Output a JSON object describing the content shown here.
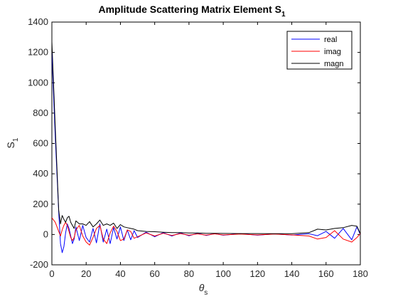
{
  "chart_data": {
    "type": "line",
    "title": "Amplitude Scattering Matrix Element S",
    "title_subscript": "1",
    "xlabel": "θ",
    "xlabel_subscript": "s",
    "ylabel": "S",
    "ylabel_subscript": "1",
    "xlim": [
      0,
      180
    ],
    "ylim": [
      -200,
      1400
    ],
    "xticks": [
      "0",
      "20",
      "40",
      "60",
      "80",
      "100",
      "120",
      "140",
      "160",
      "180"
    ],
    "yticks": [
      "-200",
      "0",
      "200",
      "400",
      "600",
      "800",
      "1000",
      "1200",
      "1400"
    ],
    "grid": false,
    "legend_position": "top-right",
    "x": [
      0,
      2,
      4,
      5,
      6,
      7,
      8,
      9,
      10,
      11,
      12,
      13,
      14,
      16,
      18,
      20,
      22,
      24,
      26,
      28,
      30,
      32,
      34,
      36,
      38,
      40,
      42,
      44,
      46,
      48,
      50,
      55,
      60,
      65,
      70,
      75,
      80,
      85,
      90,
      95,
      100,
      110,
      120,
      130,
      140,
      150,
      155,
      160,
      165,
      170,
      175,
      178,
      180
    ],
    "series": [
      {
        "name": "real",
        "color": "#0000ff",
        "values": [
          1200,
          640,
          150,
          -60,
          -120,
          -80,
          10,
          70,
          40,
          -10,
          -60,
          -30,
          50,
          -40,
          60,
          -20,
          -50,
          40,
          -55,
          70,
          -50,
          35,
          -60,
          45,
          -30,
          50,
          -40,
          30,
          -35,
          25,
          -20,
          15,
          -15,
          12,
          -10,
          10,
          -8,
          8,
          -6,
          6,
          -5,
          5,
          -5,
          4,
          -4,
          5,
          -8,
          20,
          -25,
          40,
          -35,
          50,
          0
        ]
      },
      {
        "name": "imag",
        "color": "#ff0000",
        "values": [
          110,
          80,
          20,
          -10,
          30,
          60,
          80,
          60,
          20,
          -20,
          -40,
          -20,
          30,
          60,
          -10,
          -50,
          -70,
          -20,
          40,
          60,
          -30,
          -60,
          10,
          55,
          20,
          -40,
          -30,
          30,
          20,
          -25,
          -15,
          10,
          -10,
          8,
          -6,
          6,
          -5,
          4,
          -4,
          4,
          -3,
          3,
          -3,
          3,
          -3,
          -10,
          -30,
          -20,
          25,
          -30,
          -50,
          -20,
          5
        ]
      },
      {
        "name": "magn",
        "color": "#000000",
        "values": [
          1270,
          700,
          160,
          70,
          125,
          100,
          80,
          110,
          120,
          80,
          60,
          40,
          90,
          70,
          70,
          60,
          85,
          50,
          70,
          95,
          60,
          70,
          60,
          75,
          40,
          65,
          50,
          45,
          40,
          35,
          25,
          20,
          18,
          15,
          12,
          12,
          10,
          10,
          8,
          8,
          7,
          6,
          6,
          5,
          5,
          12,
          35,
          30,
          40,
          45,
          60,
          55,
          5
        ]
      }
    ]
  }
}
